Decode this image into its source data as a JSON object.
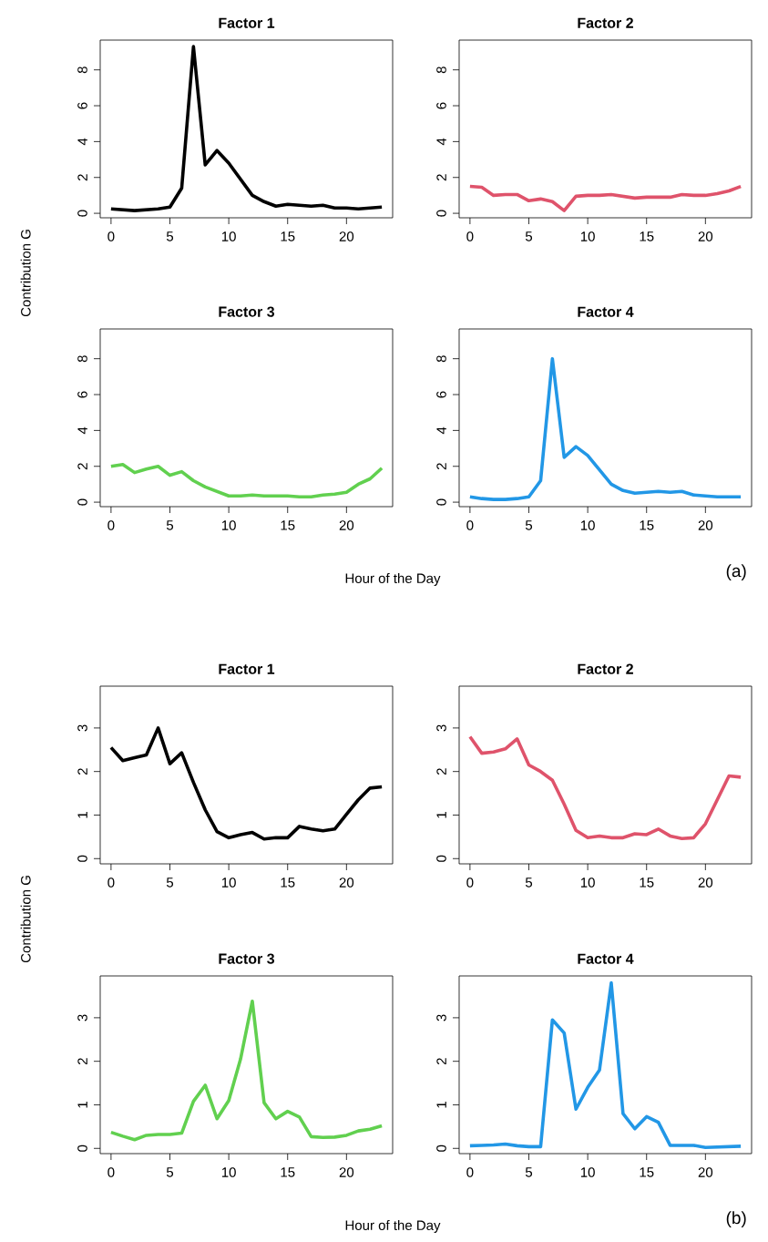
{
  "chart_data": [
    {
      "type": "line",
      "title": "Factor 1",
      "ylabel": "Contribution G",
      "x": [
        0,
        1,
        2,
        3,
        4,
        5,
        6,
        7,
        8,
        9,
        10,
        11,
        12,
        13,
        14,
        15,
        16,
        17,
        18,
        19,
        20,
        21,
        22,
        23
      ],
      "xlim": [
        -0.92,
        23.92
      ],
      "ylim": [
        -0.25,
        9.66
      ],
      "xticks": [
        0,
        5,
        10,
        15,
        20
      ],
      "yticks": [
        0,
        2,
        4,
        6,
        8
      ],
      "series": [
        {
          "color": "#000000",
          "values": [
            0.25,
            0.2,
            0.15,
            0.2,
            0.25,
            0.35,
            1.4,
            9.3,
            2.7,
            3.5,
            2.8,
            1.9,
            1.0,
            0.65,
            0.4,
            0.5,
            0.45,
            0.4,
            0.45,
            0.3,
            0.3,
            0.25,
            0.3,
            0.35
          ]
        }
      ]
    },
    {
      "type": "line",
      "title": "Factor 2",
      "x": [
        0,
        1,
        2,
        3,
        4,
        5,
        6,
        7,
        8,
        9,
        10,
        11,
        12,
        13,
        14,
        15,
        16,
        17,
        18,
        19,
        20,
        21,
        22,
        23
      ],
      "xlim": [
        -0.92,
        23.92
      ],
      "ylim": [
        -0.25,
        9.66
      ],
      "xticks": [
        0,
        5,
        10,
        15,
        20
      ],
      "yticks": [
        0,
        2,
        4,
        6,
        8
      ],
      "series": [
        {
          "color": "#df536b",
          "values": [
            1.5,
            1.45,
            1.0,
            1.05,
            1.05,
            0.7,
            0.8,
            0.65,
            0.15,
            0.95,
            1.0,
            1.0,
            1.05,
            0.95,
            0.85,
            0.9,
            0.9,
            0.9,
            1.05,
            1.0,
            1.0,
            1.1,
            1.25,
            1.5
          ]
        }
      ]
    },
    {
      "type": "line",
      "title": "Factor 3",
      "xlabel": "Hour of the Day",
      "x": [
        0,
        1,
        2,
        3,
        4,
        5,
        6,
        7,
        8,
        9,
        10,
        11,
        12,
        13,
        14,
        15,
        16,
        17,
        18,
        19,
        20,
        21,
        22,
        23
      ],
      "xlim": [
        -0.92,
        23.92
      ],
      "ylim": [
        -0.25,
        9.66
      ],
      "xticks": [
        0,
        5,
        10,
        15,
        20
      ],
      "yticks": [
        0,
        2,
        4,
        6,
        8
      ],
      "series": [
        {
          "color": "#61d04f",
          "values": [
            2.0,
            2.1,
            1.65,
            1.85,
            2.0,
            1.5,
            1.7,
            1.2,
            0.85,
            0.6,
            0.35,
            0.35,
            0.4,
            0.35,
            0.35,
            0.35,
            0.3,
            0.3,
            0.4,
            0.45,
            0.55,
            1.0,
            1.3,
            1.9
          ]
        }
      ]
    },
    {
      "type": "line",
      "title": "Factor 4",
      "annotations": [
        "(a)"
      ],
      "x": [
        0,
        1,
        2,
        3,
        4,
        5,
        6,
        7,
        8,
        9,
        10,
        11,
        12,
        13,
        14,
        15,
        16,
        17,
        18,
        19,
        20,
        21,
        22,
        23
      ],
      "xlim": [
        -0.92,
        23.92
      ],
      "ylim": [
        -0.25,
        9.66
      ],
      "xticks": [
        0,
        5,
        10,
        15,
        20
      ],
      "yticks": [
        0,
        2,
        4,
        6,
        8
      ],
      "series": [
        {
          "color": "#2297e6",
          "values": [
            0.3,
            0.2,
            0.15,
            0.15,
            0.2,
            0.3,
            1.2,
            8.0,
            2.5,
            3.1,
            2.6,
            1.8,
            1.0,
            0.65,
            0.5,
            0.55,
            0.6,
            0.55,
            0.6,
            0.4,
            0.35,
            0.3,
            0.3,
            0.3
          ]
        }
      ]
    },
    {
      "type": "line",
      "title": "Factor 1",
      "ylabel": "Contribution G",
      "x": [
        0,
        1,
        2,
        3,
        4,
        5,
        6,
        7,
        8,
        9,
        10,
        11,
        12,
        13,
        14,
        15,
        16,
        17,
        18,
        19,
        20,
        21,
        22,
        23
      ],
      "xlim": [
        -0.92,
        23.92
      ],
      "ylim": [
        -0.12,
        3.96
      ],
      "xticks": [
        0,
        5,
        10,
        15,
        20
      ],
      "yticks": [
        0,
        1,
        2,
        3
      ],
      "series": [
        {
          "color": "#000000",
          "values": [
            2.55,
            2.25,
            2.32,
            2.38,
            3.0,
            2.18,
            2.43,
            1.75,
            1.12,
            0.62,
            0.48,
            0.55,
            0.6,
            0.45,
            0.48,
            0.48,
            0.74,
            0.68,
            0.64,
            0.68,
            1.02,
            1.35,
            1.62,
            1.65
          ]
        }
      ]
    },
    {
      "type": "line",
      "title": "Factor 2",
      "x": [
        0,
        1,
        2,
        3,
        4,
        5,
        6,
        7,
        8,
        9,
        10,
        11,
        12,
        13,
        14,
        15,
        16,
        17,
        18,
        19,
        20,
        21,
        22,
        23
      ],
      "xlim": [
        -0.92,
        23.92
      ],
      "ylim": [
        -0.12,
        3.96
      ],
      "xticks": [
        0,
        5,
        10,
        15,
        20
      ],
      "yticks": [
        0,
        1,
        2,
        3
      ],
      "series": [
        {
          "color": "#df536b",
          "values": [
            2.8,
            2.42,
            2.45,
            2.52,
            2.75,
            2.15,
            2.0,
            1.8,
            1.25,
            0.65,
            0.48,
            0.52,
            0.48,
            0.48,
            0.57,
            0.55,
            0.68,
            0.52,
            0.46,
            0.48,
            0.8,
            1.35,
            1.9,
            1.87
          ]
        }
      ]
    },
    {
      "type": "line",
      "title": "Factor 3",
      "xlabel": "Hour of the Day",
      "x": [
        0,
        1,
        2,
        3,
        4,
        5,
        6,
        7,
        8,
        9,
        10,
        11,
        12,
        13,
        14,
        15,
        16,
        17,
        18,
        19,
        20,
        21,
        22,
        23
      ],
      "xlim": [
        -0.92,
        23.92
      ],
      "ylim": [
        -0.12,
        3.96
      ],
      "xticks": [
        0,
        5,
        10,
        15,
        20
      ],
      "yticks": [
        0,
        1,
        2,
        3
      ],
      "series": [
        {
          "color": "#61d04f",
          "values": [
            0.37,
            0.28,
            0.2,
            0.3,
            0.32,
            0.32,
            0.35,
            1.08,
            1.45,
            0.68,
            1.1,
            2.05,
            3.38,
            1.05,
            0.68,
            0.85,
            0.72,
            0.27,
            0.25,
            0.26,
            0.3,
            0.4,
            0.44,
            0.52
          ]
        }
      ]
    },
    {
      "type": "line",
      "title": "Factor 4",
      "annotations": [
        "(b)"
      ],
      "x": [
        0,
        1,
        2,
        3,
        4,
        5,
        6,
        7,
        8,
        9,
        10,
        11,
        12,
        13,
        14,
        15,
        16,
        17,
        18,
        19,
        20,
        21,
        22,
        23
      ],
      "xlim": [
        -0.92,
        23.92
      ],
      "ylim": [
        -0.12,
        3.96
      ],
      "xticks": [
        0,
        5,
        10,
        15,
        20
      ],
      "yticks": [
        0,
        1,
        2,
        3
      ],
      "series": [
        {
          "color": "#2297e6",
          "values": [
            0.06,
            0.07,
            0.08,
            0.1,
            0.06,
            0.04,
            0.04,
            2.95,
            2.65,
            0.9,
            1.4,
            1.8,
            3.8,
            0.8,
            0.45,
            0.73,
            0.6,
            0.07,
            0.07,
            0.07,
            0.02,
            0.03,
            0.04,
            0.05
          ]
        }
      ]
    }
  ]
}
